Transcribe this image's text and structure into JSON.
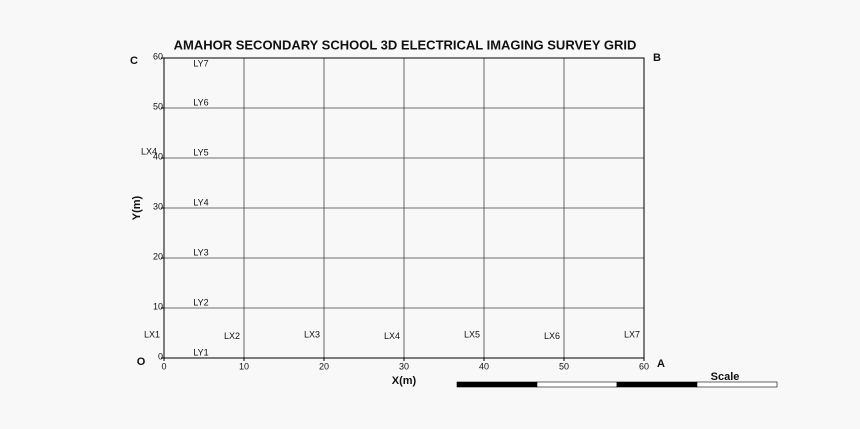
{
  "chart_data": {
    "type": "grid",
    "title": "AMAHOR SECONDARY SCHOOL 3D ELECTRICAL IMAGING  SURVEY  GRID",
    "xlabel": "X(m)",
    "ylabel": "Y(m)",
    "xlim": [
      0,
      60
    ],
    "ylim": [
      0,
      60
    ],
    "xticks": [
      0,
      10,
      20,
      30,
      40,
      50,
      60
    ],
    "yticks": [
      0,
      10,
      20,
      30,
      40,
      50,
      60
    ],
    "grid": true,
    "x_lines": {
      "names": [
        "LX1",
        "LX2",
        "LX3",
        "LX4",
        "LX5",
        "LX6",
        "LX7"
      ],
      "positions": [
        0,
        10,
        20,
        30,
        40,
        50,
        60
      ]
    },
    "y_lines": {
      "names": [
        "LY1",
        "LY2",
        "LY3",
        "LY4",
        "LY5",
        "LY6",
        "LY7"
      ],
      "positions": [
        0,
        10,
        20,
        30,
        40,
        50,
        60
      ]
    },
    "side_label": "LX4",
    "corners": [
      "C",
      "B",
      "O",
      "A"
    ],
    "scale_label": "Scale"
  }
}
